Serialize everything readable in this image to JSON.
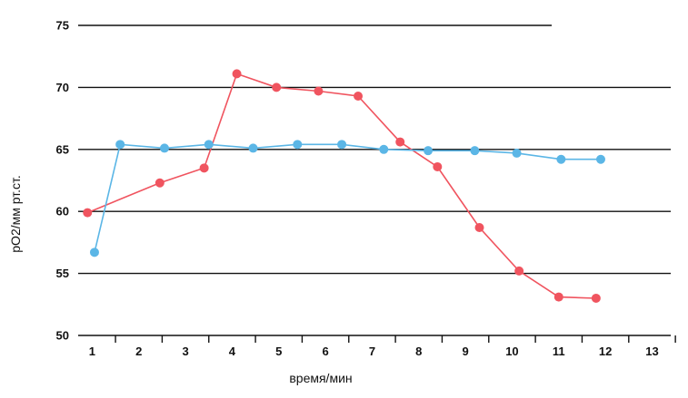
{
  "chart_data": {
    "type": "line",
    "title": "",
    "xlabel": "время/мин",
    "ylabel": "pO2/мм рт.ст.",
    "xlim": [
      0.7,
      13.4
    ],
    "ylim": [
      50,
      75
    ],
    "x_ticks": [
      1,
      2,
      3,
      4,
      5,
      6,
      7,
      8,
      9,
      10,
      11,
      12,
      13
    ],
    "y_ticks": [
      50,
      55,
      60,
      65,
      70,
      75
    ],
    "grid": true,
    "series": [
      {
        "color": "#f0545f",
        "points": [
          [
            0.9,
            59.9
          ],
          [
            2.45,
            62.3
          ],
          [
            3.4,
            63.5
          ],
          [
            4.1,
            71.1
          ],
          [
            4.95,
            70.0
          ],
          [
            5.85,
            69.7
          ],
          [
            6.7,
            69.3
          ],
          [
            7.6,
            65.6
          ],
          [
            8.4,
            63.6
          ],
          [
            9.3,
            58.7
          ],
          [
            10.15,
            55.2
          ],
          [
            11.0,
            53.1
          ],
          [
            11.8,
            53.0
          ]
        ]
      },
      {
        "color": "#5bb6e6",
        "points": [
          [
            1.05,
            56.7
          ],
          [
            1.6,
            65.4
          ],
          [
            2.55,
            65.1
          ],
          [
            3.5,
            65.4
          ],
          [
            4.45,
            65.1
          ],
          [
            5.4,
            65.4
          ],
          [
            6.35,
            65.4
          ],
          [
            7.25,
            65.0
          ],
          [
            8.2,
            64.9
          ],
          [
            9.2,
            64.9
          ],
          [
            10.1,
            64.7
          ],
          [
            11.05,
            64.2
          ],
          [
            11.9,
            64.2
          ]
        ]
      }
    ]
  }
}
